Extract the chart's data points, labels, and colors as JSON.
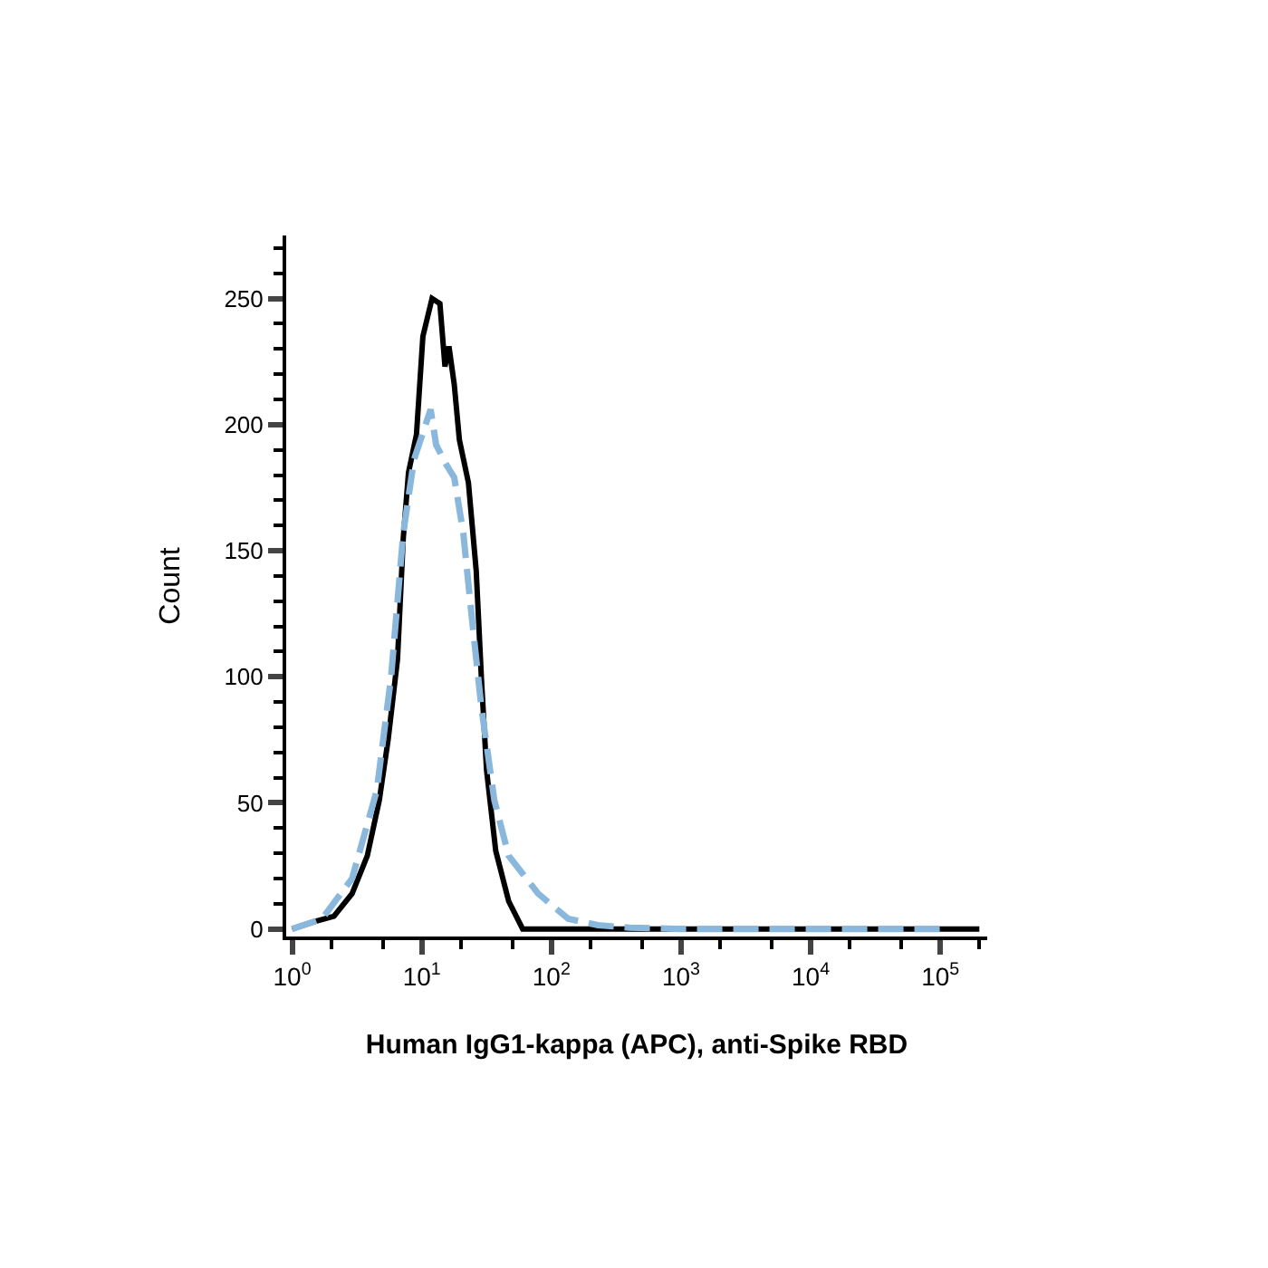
{
  "chart_data": {
    "type": "line",
    "xlabel": "Human IgG1-kappa (APC), anti-Spike RBD",
    "ylabel": "Count",
    "log": "x",
    "marker": "none",
    "xlim": [
      0.9,
      230000
    ],
    "ylim": [
      -3,
      275
    ],
    "xticks": [
      {
        "value": 1,
        "label": "10$^{0}$"
      },
      {
        "value": 10,
        "label": "10$^{1}$"
      },
      {
        "value": 100,
        "label": "10$^{2}$"
      },
      {
        "value": 1000,
        "label": "10$^{3}$"
      },
      {
        "value": 10000,
        "label": "10$^{4}$"
      },
      {
        "value": 100000,
        "label": "10$^{5}$"
      }
    ],
    "yticks": [
      0,
      50,
      100,
      150,
      200,
      250
    ],
    "series": [
      {
        "color": "#000000",
        "line_style": "solid",
        "x": [
          1,
          1.5,
          2.1,
          2.9,
          3.8,
          4.7,
          5.5,
          6.5,
          7.2,
          7.9,
          9.1,
          10.2,
          12,
          13.8,
          15.1,
          16.2,
          17.8,
          19.5,
          22.9,
          26.3,
          28.8,
          31.6,
          37.2,
          46.8,
          60,
          200000
        ],
        "values": [
          0,
          3,
          5,
          14,
          29,
          51,
          75,
          107,
          155,
          181,
          196,
          235,
          250,
          248,
          223,
          231,
          216,
          194,
          177,
          142,
          100,
          63,
          31,
          11,
          0,
          0
        ]
      },
      {
        "color": "#8ab8dd",
        "line_style": "dashed",
        "x": [
          1,
          1.7,
          2.9,
          4.5,
          5.8,
          7.2,
          8.7,
          11.7,
          12.9,
          15.5,
          17.8,
          20.9,
          24.5,
          28.8,
          36.3,
          46.8,
          79,
          135,
          229,
          400,
          1000,
          100000
        ],
        "values": [
          0,
          4,
          20,
          55,
          100,
          157,
          186,
          206,
          192,
          184,
          179,
          157,
          122,
          88,
          51,
          29,
          14,
          4,
          1.5,
          0.5,
          0,
          0
        ]
      }
    ]
  }
}
